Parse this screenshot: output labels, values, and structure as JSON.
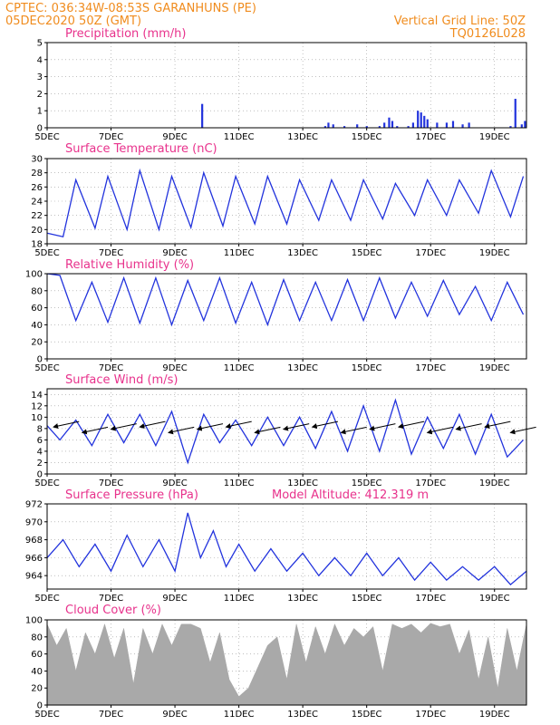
{
  "header": {
    "station_line": "CPTEC:   036:34W-08:53S   GARANHUNS (PE)",
    "date_line": "05DEC2020 50Z (GMT)",
    "grid_line": "Vertical Grid Line: 50Z",
    "code": "TQ0126L028"
  },
  "colors": {
    "header": "#f08c1e",
    "panel_title": "#e8328c",
    "series": "#2233dd",
    "cloud": "#a9a9a9",
    "wind_arrow": "#000000"
  },
  "chart_data": [
    {
      "type": "bar",
      "title": "Precipitation (mm/h)",
      "x_labels": [
        "5DEC",
        "7DEC",
        "9DEC",
        "11DEC",
        "13DEC",
        "15DEC",
        "17DEC",
        "19DEC"
      ],
      "xlim_days": [
        5,
        20
      ],
      "ylim": [
        0,
        5
      ],
      "yticks": [
        "0",
        "1",
        "2",
        "3",
        "4",
        "5"
      ],
      "x": [
        9.85,
        13.7,
        13.8,
        13.95,
        14.3,
        14.7,
        15.0,
        15.4,
        15.55,
        15.7,
        15.8,
        15.95,
        16.3,
        16.45,
        16.6,
        16.7,
        16.8,
        16.9,
        17.2,
        17.5,
        17.7,
        18.0,
        18.2,
        19.5,
        19.65,
        19.85,
        19.95
      ],
      "values": [
        1.4,
        0.1,
        0.3,
        0.2,
        0.1,
        0.2,
        0.1,
        0.1,
        0.3,
        0.6,
        0.4,
        0.1,
        0.1,
        0.3,
        1.0,
        0.9,
        0.7,
        0.5,
        0.3,
        0.3,
        0.4,
        0.2,
        0.3,
        0.1,
        1.7,
        0.2,
        0.4
      ]
    },
    {
      "type": "line",
      "title": "Surface Temperature (nC)",
      "x_labels": [
        "5DEC",
        "7DEC",
        "9DEC",
        "11DEC",
        "13DEC",
        "15DEC",
        "17DEC",
        "19DEC"
      ],
      "xlim_days": [
        5,
        20
      ],
      "ylim": [
        18,
        30
      ],
      "yticks": [
        "18",
        "20",
        "22",
        "24",
        "26",
        "28",
        "30"
      ],
      "x": [
        5.0,
        5.5,
        5.9,
        6.5,
        6.9,
        7.5,
        7.9,
        8.5,
        8.9,
        9.5,
        9.9,
        10.5,
        10.9,
        11.5,
        11.9,
        12.5,
        12.9,
        13.5,
        13.9,
        14.5,
        14.9,
        15.5,
        15.9,
        16.5,
        16.9,
        17.5,
        17.9,
        18.5,
        18.9,
        19.5,
        19.9
      ],
      "values": [
        19.5,
        19.0,
        27.0,
        20.2,
        27.5,
        20.0,
        28.3,
        20.0,
        27.5,
        20.3,
        28.0,
        20.5,
        27.5,
        20.8,
        27.5,
        20.8,
        27.0,
        21.3,
        27.0,
        21.3,
        27.0,
        21.5,
        26.5,
        22.0,
        27.0,
        22.0,
        27.0,
        22.3,
        28.3,
        21.8,
        27.5
      ]
    },
    {
      "type": "line",
      "title": "Relative Humidity (%)",
      "x_labels": [
        "5DEC",
        "7DEC",
        "9DEC",
        "11DEC",
        "13DEC",
        "15DEC",
        "17DEC",
        "19DEC"
      ],
      "xlim_days": [
        5,
        20
      ],
      "ylim": [
        0,
        100
      ],
      "yticks": [
        "0",
        "20",
        "40",
        "60",
        "80",
        "100"
      ],
      "x": [
        5.0,
        5.4,
        5.9,
        6.4,
        6.9,
        7.4,
        7.9,
        8.4,
        8.9,
        9.4,
        9.9,
        10.4,
        10.9,
        11.4,
        11.9,
        12.4,
        12.9,
        13.4,
        13.9,
        14.4,
        14.9,
        15.4,
        15.9,
        16.4,
        16.9,
        17.4,
        17.9,
        18.4,
        18.9,
        19.4,
        19.9
      ],
      "values": [
        100,
        98,
        45,
        90,
        43,
        95,
        42,
        95,
        40,
        92,
        45,
        95,
        42,
        90,
        40,
        93,
        45,
        90,
        45,
        93,
        45,
        95,
        48,
        90,
        50,
        92,
        52,
        85,
        45,
        90,
        52
      ]
    },
    {
      "type": "line",
      "title": "Surface Wind (m/s)",
      "x_labels": [
        "5DEC",
        "7DEC",
        "9DEC",
        "11DEC",
        "13DEC",
        "15DEC",
        "17DEC",
        "19DEC"
      ],
      "xlim_days": [
        5,
        20
      ],
      "ylim": [
        0,
        15
      ],
      "yticks": [
        "0",
        "2",
        "4",
        "6",
        "8",
        "10",
        "12",
        "14"
      ],
      "x": [
        5.0,
        5.4,
        5.9,
        6.4,
        6.9,
        7.4,
        7.9,
        8.4,
        8.9,
        9.4,
        9.9,
        10.4,
        10.9,
        11.4,
        11.9,
        12.4,
        12.9,
        13.4,
        13.9,
        14.4,
        14.9,
        15.4,
        15.9,
        16.4,
        16.9,
        17.4,
        17.9,
        18.4,
        18.9,
        19.4,
        19.9
      ],
      "values": [
        8.5,
        6.0,
        9.5,
        5.0,
        10.5,
        5.5,
        10.5,
        5.0,
        11.0,
        2.0,
        10.5,
        5.5,
        9.5,
        5.0,
        10.0,
        5.0,
        10.0,
        4.5,
        11.0,
        4.0,
        12.0,
        4.0,
        13.0,
        3.5,
        10.0,
        4.5,
        10.5,
        3.5,
        10.5,
        3.0,
        6.0
      ]
    },
    {
      "type": "line",
      "title": "Surface Pressure (hPa)",
      "annotation": "Model Altitude: 412.319 m",
      "x_labels": [
        "5DEC",
        "7DEC",
        "9DEC",
        "11DEC",
        "13DEC",
        "15DEC",
        "17DEC",
        "19DEC"
      ],
      "xlim_days": [
        5,
        20
      ],
      "ylim": [
        962.5,
        972
      ],
      "yticks": [
        "964",
        "966",
        "968",
        "970",
        "972"
      ],
      "x": [
        5.0,
        5.5,
        6.0,
        6.5,
        7.0,
        7.5,
        8.0,
        8.5,
        9.0,
        9.4,
        9.8,
        10.2,
        10.6,
        11.0,
        11.5,
        12.0,
        12.5,
        13.0,
        13.5,
        14.0,
        14.5,
        15.0,
        15.5,
        16.0,
        16.5,
        17.0,
        17.5,
        18.0,
        18.5,
        19.0,
        19.5,
        20.0
      ],
      "values": [
        966.0,
        968.0,
        965.0,
        967.5,
        964.5,
        968.5,
        965.0,
        968.0,
        964.5,
        971.0,
        966.0,
        969.0,
        965.0,
        967.5,
        964.5,
        967.0,
        964.5,
        966.5,
        964.0,
        966.0,
        964.0,
        966.5,
        964.0,
        966.0,
        963.5,
        965.5,
        963.5,
        965.0,
        963.5,
        965.0,
        963.0,
        964.5
      ]
    },
    {
      "type": "area",
      "title": "Cloud Cover (%)",
      "x_labels": [
        "5DEC",
        "7DEC",
        "9DEC",
        "11DEC",
        "13DEC",
        "15DEC",
        "17DEC",
        "19DEC"
      ],
      "xlim_days": [
        5,
        20
      ],
      "ylim": [
        0,
        100
      ],
      "yticks": [
        "0",
        "20",
        "40",
        "60",
        "80",
        "100"
      ],
      "x": [
        5.0,
        5.3,
        5.6,
        5.9,
        6.2,
        6.5,
        6.8,
        7.1,
        7.4,
        7.7,
        8.0,
        8.3,
        8.6,
        8.9,
        9.2,
        9.5,
        9.8,
        10.1,
        10.4,
        10.7,
        11.0,
        11.3,
        11.6,
        11.9,
        12.2,
        12.5,
        12.8,
        13.1,
        13.4,
        13.7,
        14.0,
        14.3,
        14.6,
        14.9,
        15.2,
        15.5,
        15.8,
        16.1,
        16.4,
        16.7,
        17.0,
        17.3,
        17.6,
        17.9,
        18.2,
        18.5,
        18.8,
        19.1,
        19.4,
        19.7,
        20.0
      ],
      "values": [
        95,
        70,
        90,
        40,
        85,
        60,
        95,
        55,
        90,
        25,
        90,
        60,
        95,
        70,
        95,
        95,
        90,
        50,
        85,
        30,
        10,
        20,
        45,
        70,
        80,
        30,
        95,
        50,
        92,
        60,
        95,
        70,
        90,
        80,
        92,
        40,
        95,
        90,
        95,
        85,
        96,
        92,
        95,
        60,
        88,
        30,
        80,
        20,
        90,
        40,
        95
      ]
    }
  ]
}
